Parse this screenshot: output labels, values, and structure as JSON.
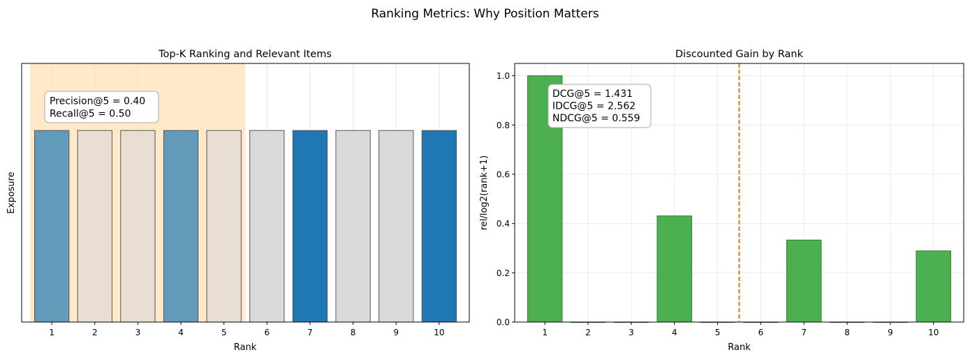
{
  "figure": {
    "suptitle": "Ranking Metrics: Why Position Matters"
  },
  "chart_data": [
    {
      "type": "bar",
      "title": "Top-K Ranking and Relevant Items",
      "xlabel": "Rank",
      "ylabel": "Exposure",
      "categories": [
        "1",
        "2",
        "3",
        "4",
        "5",
        "6",
        "7",
        "8",
        "9",
        "10"
      ],
      "values": [
        1,
        1,
        1,
        1,
        1,
        1,
        1,
        1,
        1,
        1
      ],
      "relevant": [
        true,
        false,
        false,
        true,
        false,
        false,
        true,
        false,
        false,
        true
      ],
      "ylim": [
        0,
        1.35
      ],
      "yticks_visible": false,
      "highlight_top_k": 5,
      "grid": true,
      "colors": {
        "relevant": "#1f77b4",
        "nonrelevant": "#d9d9d9",
        "highlight": "#ffe0b2",
        "edge": "#555555"
      },
      "annotation": [
        "Precision@5 = 0.40",
        "Recall@5 = 0.50"
      ]
    },
    {
      "type": "bar",
      "title": "Discounted Gain by Rank",
      "xlabel": "Rank",
      "ylabel": "rel/log2(rank+1)",
      "categories": [
        "1",
        "2",
        "3",
        "4",
        "5",
        "6",
        "7",
        "8",
        "9",
        "10"
      ],
      "values": [
        1.0,
        0,
        0,
        0.431,
        0,
        0,
        0.333,
        0,
        0,
        0.289
      ],
      "ylim": [
        0,
        1.05
      ],
      "yticks": [
        "0.0",
        "0.2",
        "0.4",
        "0.6",
        "0.8",
        "1.0"
      ],
      "cutoff_line_x": 5.5,
      "grid": true,
      "colors": {
        "bar": "#4caf50",
        "edge": "#2e7d32",
        "cutoff": "#e8730c"
      },
      "annotation": [
        "DCG@5 = 1.431",
        "IDCG@5 = 2.562",
        "NDCG@5 = 0.559"
      ]
    }
  ]
}
